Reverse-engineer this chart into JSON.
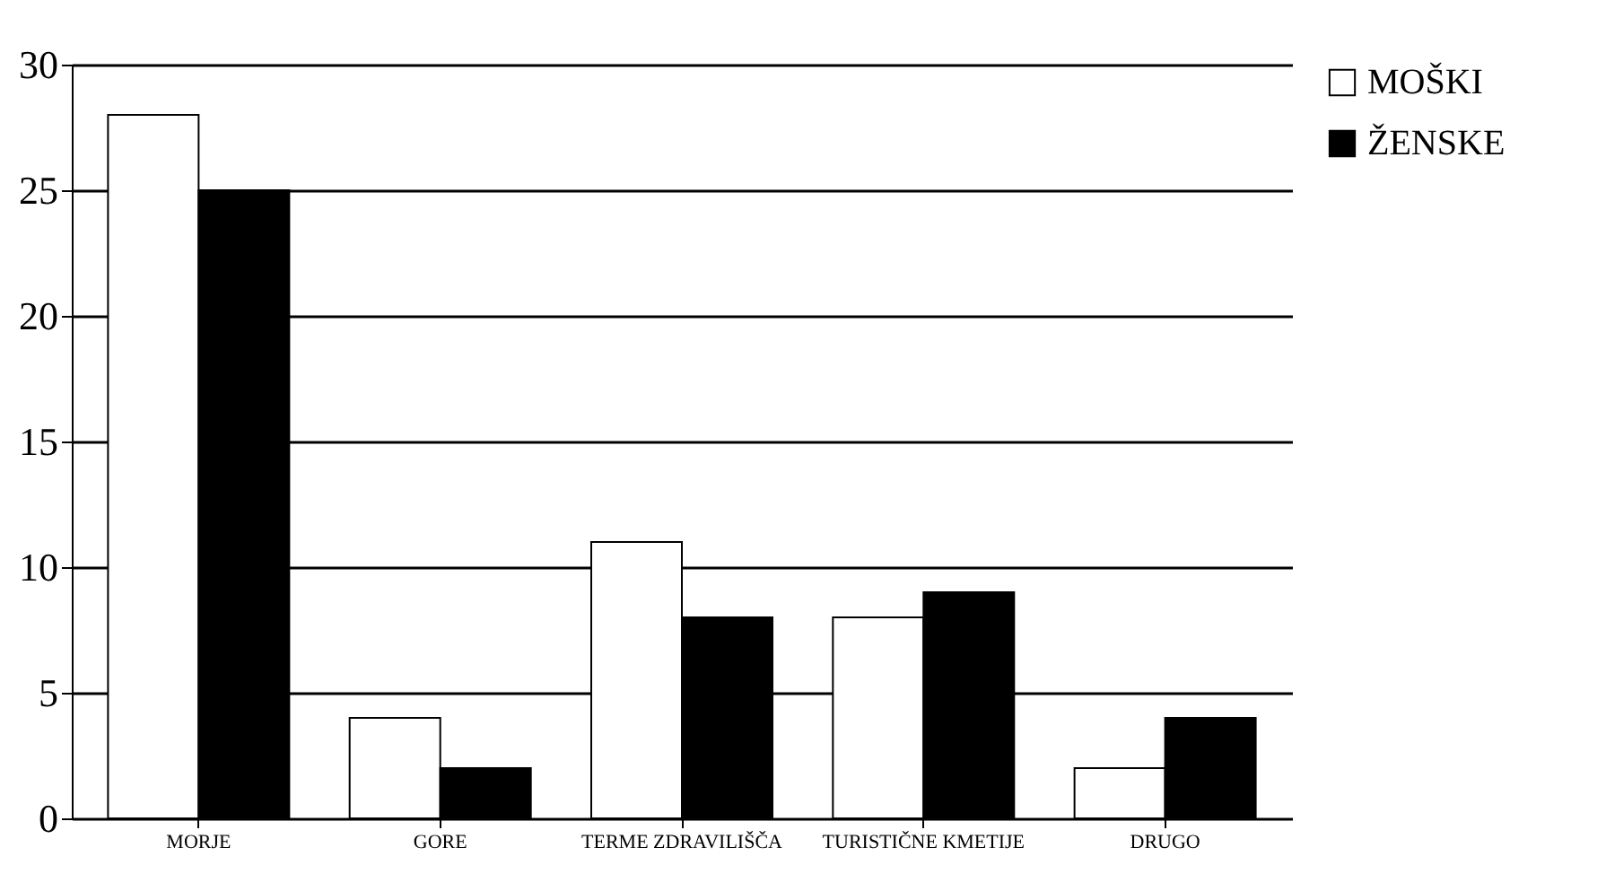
{
  "chart_data": {
    "type": "bar",
    "categories": [
      "MORJE",
      "GORE",
      "TERME ZDRAVILIŠČA",
      "TURISTIČNE KMETIJE",
      "DRUGO"
    ],
    "series": [
      {
        "name": "MOŠKI",
        "color": "#ffffff",
        "values": [
          28,
          4,
          11,
          8,
          2
        ]
      },
      {
        "name": "ŽENSKE",
        "color": "#000000",
        "values": [
          25,
          2,
          8,
          9,
          4
        ]
      }
    ],
    "ylim": [
      0,
      30
    ],
    "yticks": [
      0,
      5,
      10,
      15,
      20,
      25,
      30
    ],
    "grid": "y",
    "legend": "right"
  }
}
